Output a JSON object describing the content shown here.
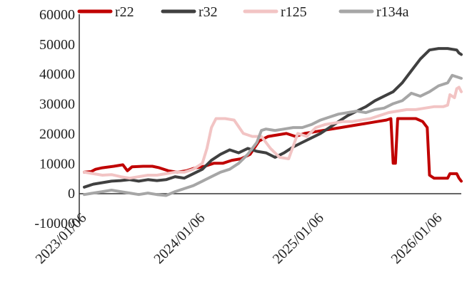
{
  "chart_data": {
    "type": "line",
    "title": "",
    "xlabel": "",
    "ylabel": "",
    "ylim": [
      -10000,
      60000
    ],
    "yticks": [
      -10000,
      0,
      10000,
      20000,
      30000,
      40000,
      50000,
      60000
    ],
    "ytick_labels": [
      "-10000",
      "0",
      "10000",
      "20000",
      "30000",
      "40000",
      "50000",
      "60000"
    ],
    "xlim": [
      "2023-01-06",
      "2026-03-13"
    ],
    "xticks": [
      "2023/01/06",
      "2024/01/06",
      "2025/01/06",
      "2026/01/06"
    ],
    "grid": false,
    "legend_position": "top",
    "series": [
      {
        "name": "r22",
        "color": "#C00000",
        "points": [
          [
            "2023-01-06",
            7000
          ],
          [
            "2023-01-27",
            7200
          ],
          [
            "2023-02-10",
            8000
          ],
          [
            "2023-03-03",
            8500
          ],
          [
            "2023-04-07",
            9000
          ],
          [
            "2023-05-05",
            9500
          ],
          [
            "2023-05-19",
            7500
          ],
          [
            "2023-06-02",
            8800
          ],
          [
            "2023-07-07",
            9000
          ],
          [
            "2023-08-04",
            9000
          ],
          [
            "2023-08-25",
            8500
          ],
          [
            "2023-09-22",
            7500
          ],
          [
            "2023-10-20",
            7000
          ],
          [
            "2023-11-17",
            7500
          ],
          [
            "2023-12-15",
            8500
          ],
          [
            "2024-01-12",
            9000
          ],
          [
            "2024-02-09",
            10000
          ],
          [
            "2024-03-08",
            10000
          ],
          [
            "2024-04-05",
            11000
          ],
          [
            "2024-05-03",
            11500
          ],
          [
            "2024-05-31",
            13000
          ],
          [
            "2024-06-28",
            17500
          ],
          [
            "2024-07-26",
            19000
          ],
          [
            "2024-08-23",
            19500
          ],
          [
            "2024-09-20",
            20000
          ],
          [
            "2024-10-18",
            19000
          ],
          [
            "2024-11-15",
            20000
          ],
          [
            "2024-12-13",
            20500
          ],
          [
            "2025-01-10",
            21000
          ],
          [
            "2025-02-07",
            21500
          ],
          [
            "2025-03-07",
            22000
          ],
          [
            "2025-04-04",
            22500
          ],
          [
            "2025-05-02",
            23000
          ],
          [
            "2025-05-30",
            23500
          ],
          [
            "2025-06-27",
            24000
          ],
          [
            "2025-07-25",
            24500
          ],
          [
            "2025-08-08",
            25000
          ],
          [
            "2025-08-15",
            10000
          ],
          [
            "2025-08-22",
            10000
          ],
          [
            "2025-08-29",
            25000
          ],
          [
            "2025-09-26",
            25000
          ],
          [
            "2025-10-24",
            25000
          ],
          [
            "2025-11-14",
            24000
          ],
          [
            "2025-11-28",
            22000
          ],
          [
            "2025-12-05",
            6000
          ],
          [
            "2025-12-19",
            5000
          ],
          [
            "2026-01-09",
            5000
          ],
          [
            "2026-01-30",
            5000
          ],
          [
            "2026-02-06",
            6500
          ],
          [
            "2026-02-27",
            6500
          ],
          [
            "2026-03-06",
            5000
          ],
          [
            "2026-03-13",
            4000
          ]
        ]
      },
      {
        "name": "r32",
        "color": "#404040",
        "points": [
          [
            "2023-01-06",
            2000
          ],
          [
            "2023-02-03",
            3000
          ],
          [
            "2023-03-03",
            3500
          ],
          [
            "2023-03-31",
            4000
          ],
          [
            "2023-04-28",
            4200
          ],
          [
            "2023-05-26",
            4500
          ],
          [
            "2023-06-23",
            4000
          ],
          [
            "2023-07-21",
            4500
          ],
          [
            "2023-08-18",
            4200
          ],
          [
            "2023-09-15",
            4500
          ],
          [
            "2023-10-13",
            5500
          ],
          [
            "2023-11-10",
            5000
          ],
          [
            "2023-12-08",
            6500
          ],
          [
            "2024-01-05",
            8000
          ],
          [
            "2024-02-02",
            11000
          ],
          [
            "2024-03-01",
            13000
          ],
          [
            "2024-03-29",
            14500
          ],
          [
            "2024-04-26",
            13500
          ],
          [
            "2024-05-24",
            15000
          ],
          [
            "2024-06-21",
            14000
          ],
          [
            "2024-07-19",
            13500
          ],
          [
            "2024-08-16",
            12000
          ],
          [
            "2024-09-13",
            13500
          ],
          [
            "2024-10-11",
            15500
          ],
          [
            "2024-11-08",
            17000
          ],
          [
            "2024-12-06",
            18500
          ],
          [
            "2025-01-03",
            20000
          ],
          [
            "2025-01-31",
            22000
          ],
          [
            "2025-02-28",
            24000
          ],
          [
            "2025-03-28",
            26000
          ],
          [
            "2025-04-25",
            27500
          ],
          [
            "2025-05-23",
            29000
          ],
          [
            "2025-06-20",
            31000
          ],
          [
            "2025-07-18",
            32500
          ],
          [
            "2025-08-15",
            34000
          ],
          [
            "2025-09-12",
            37000
          ],
          [
            "2025-10-10",
            41000
          ],
          [
            "2025-11-07",
            45000
          ],
          [
            "2025-12-05",
            48000
          ],
          [
            "2026-01-02",
            48500
          ],
          [
            "2026-01-30",
            48500
          ],
          [
            "2026-02-27",
            48000
          ],
          [
            "2026-03-06",
            47000
          ],
          [
            "2026-03-13",
            46500
          ]
        ]
      },
      {
        "name": "r125",
        "color": "#F2C4C4",
        "points": [
          [
            "2023-01-06",
            7000
          ],
          [
            "2023-02-03",
            6500
          ],
          [
            "2023-03-03",
            6000
          ],
          [
            "2023-03-31",
            6200
          ],
          [
            "2023-04-28",
            5500
          ],
          [
            "2023-05-26",
            5000
          ],
          [
            "2023-06-23",
            5500
          ],
          [
            "2023-07-21",
            6000
          ],
          [
            "2023-08-18",
            6000
          ],
          [
            "2023-09-15",
            6500
          ],
          [
            "2023-10-13",
            7000
          ],
          [
            "2023-11-10",
            7000
          ],
          [
            "2023-12-08",
            8000
          ],
          [
            "2024-01-05",
            10000
          ],
          [
            "2024-01-19",
            15000
          ],
          [
            "2024-02-02",
            22000
          ],
          [
            "2024-02-16",
            25000
          ],
          [
            "2024-03-15",
            25000
          ],
          [
            "2024-04-12",
            24500
          ],
          [
            "2024-05-10",
            20000
          ],
          [
            "2024-06-07",
            19000
          ],
          [
            "2024-07-05",
            19000
          ],
          [
            "2024-08-02",
            15000
          ],
          [
            "2024-08-30",
            12000
          ],
          [
            "2024-09-27",
            11500
          ],
          [
            "2024-10-25",
            20000
          ],
          [
            "2024-11-22",
            19000
          ],
          [
            "2024-12-20",
            22000
          ],
          [
            "2025-01-17",
            23000
          ],
          [
            "2025-02-14",
            23500
          ],
          [
            "2025-03-14",
            24000
          ],
          [
            "2025-04-11",
            24000
          ],
          [
            "2025-05-09",
            24500
          ],
          [
            "2025-06-06",
            25000
          ],
          [
            "2025-07-04",
            26000
          ],
          [
            "2025-08-01",
            27000
          ],
          [
            "2025-08-29",
            27500
          ],
          [
            "2025-09-26",
            28000
          ],
          [
            "2025-10-24",
            28000
          ],
          [
            "2025-11-21",
            28500
          ],
          [
            "2025-12-19",
            29000
          ],
          [
            "2026-01-16",
            29000
          ],
          [
            "2026-01-30",
            29500
          ],
          [
            "2026-02-06",
            33000
          ],
          [
            "2026-02-20",
            32000
          ],
          [
            "2026-02-27",
            35000
          ],
          [
            "2026-03-06",
            35500
          ],
          [
            "2026-03-13",
            34000
          ]
        ]
      },
      {
        "name": "r134a",
        "color": "#A6A6A6",
        "points": [
          [
            "2023-01-06",
            -500
          ],
          [
            "2023-02-03",
            0
          ],
          [
            "2023-03-03",
            500
          ],
          [
            "2023-03-31",
            1000
          ],
          [
            "2023-04-28",
            500
          ],
          [
            "2023-05-26",
            0
          ],
          [
            "2023-06-23",
            -500
          ],
          [
            "2023-07-21",
            0
          ],
          [
            "2023-08-18",
            -500
          ],
          [
            "2023-09-15",
            -800
          ],
          [
            "2023-10-13",
            500
          ],
          [
            "2023-11-10",
            1500
          ],
          [
            "2023-12-08",
            2500
          ],
          [
            "2024-01-05",
            4000
          ],
          [
            "2024-02-02",
            5500
          ],
          [
            "2024-03-01",
            7000
          ],
          [
            "2024-03-29",
            8000
          ],
          [
            "2024-04-26",
            10000
          ],
          [
            "2024-05-24",
            13000
          ],
          [
            "2024-06-21",
            17000
          ],
          [
            "2024-07-05",
            21000
          ],
          [
            "2024-07-19",
            21500
          ],
          [
            "2024-08-16",
            21000
          ],
          [
            "2024-09-13",
            21500
          ],
          [
            "2024-10-11",
            22000
          ],
          [
            "2024-11-08",
            22000
          ],
          [
            "2024-12-06",
            23000
          ],
          [
            "2025-01-03",
            24500
          ],
          [
            "2025-01-31",
            25500
          ],
          [
            "2025-02-28",
            26500
          ],
          [
            "2025-03-28",
            27000
          ],
          [
            "2025-04-25",
            27500
          ],
          [
            "2025-05-23",
            27000
          ],
          [
            "2025-06-20",
            28000
          ],
          [
            "2025-07-18",
            28500
          ],
          [
            "2025-08-15",
            30000
          ],
          [
            "2025-09-12",
            31000
          ],
          [
            "2025-10-10",
            33500
          ],
          [
            "2025-11-07",
            32500
          ],
          [
            "2025-12-05",
            34000
          ],
          [
            "2026-01-02",
            36000
          ],
          [
            "2026-01-30",
            37000
          ],
          [
            "2026-02-13",
            39500
          ],
          [
            "2026-02-27",
            39000
          ],
          [
            "2026-03-13",
            38500
          ]
        ]
      }
    ]
  }
}
